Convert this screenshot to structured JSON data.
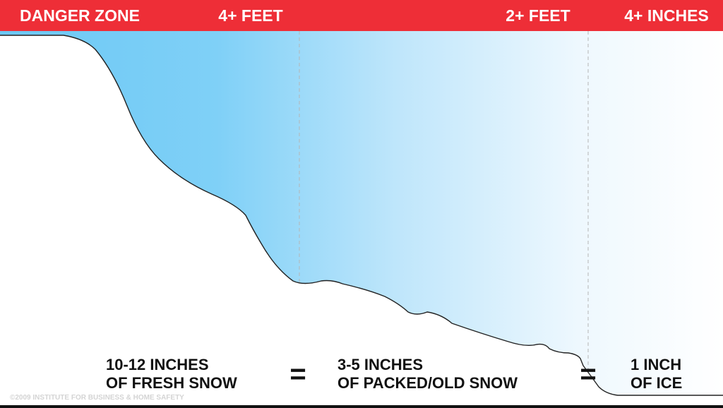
{
  "header": {
    "labels": [
      "DANGER ZONE",
      "4+ FEET",
      "2+ FEET",
      "4+ INCHES"
    ]
  },
  "equivalents": [
    {
      "lines": [
        "10-12 INCHES",
        "OF FRESH SNOW"
      ]
    },
    {
      "lines": [
        "3-5 INCHES",
        "OF PACKED/OLD SNOW"
      ]
    },
    {
      "lines": [
        "1 INCH",
        "OF ICE"
      ]
    }
  ],
  "equals": [
    "=",
    "="
  ],
  "copyright": "©2009 INSTITUTE FOR BUSINESS & HOME SAFETY"
}
